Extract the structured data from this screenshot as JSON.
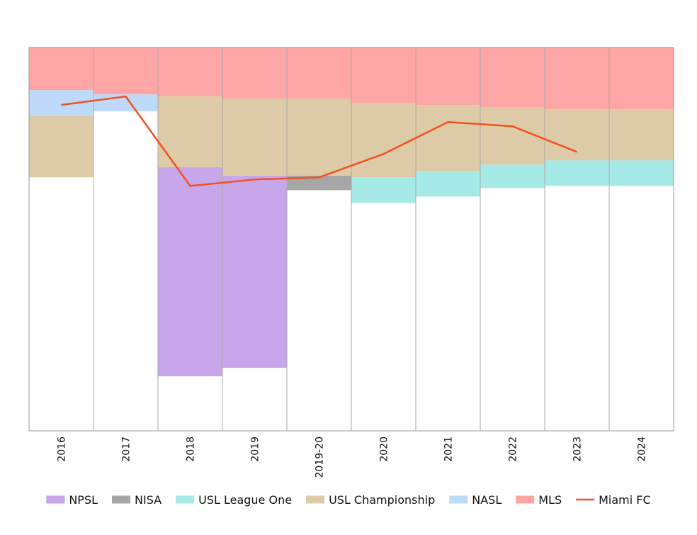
{
  "chart_data": {
    "type": "area",
    "title": "",
    "xlabel": "",
    "ylabel": "",
    "grid": true,
    "legend_position": "bottom",
    "categories": [
      "2016",
      "2017",
      "2018",
      "2019",
      "2019-20",
      "2020",
      "2021",
      "2022",
      "2023",
      "2024"
    ],
    "ylim": [
      0,
      90
    ],
    "y_inverted": true,
    "series": [
      {
        "name": "NPSL",
        "color": "#c8a6ea",
        "ranges": [
          null,
          null,
          [
            28.1,
            77.2
          ],
          [
            30.1,
            75.2
          ],
          null,
          null,
          null,
          null,
          null,
          null
        ]
      },
      {
        "name": "NISA",
        "color": "#a6a6a6",
        "ranges": [
          null,
          null,
          null,
          null,
          [
            30.1,
            33.5
          ],
          null,
          null,
          null,
          null,
          null
        ]
      },
      {
        "name": "USL League One",
        "color": "#a6eae8",
        "ranges": [
          null,
          null,
          null,
          null,
          null,
          [
            30.5,
            36.5
          ],
          [
            29.0,
            35.0
          ],
          [
            27.5,
            33.0
          ],
          [
            26.5,
            32.5
          ],
          [
            26.5,
            32.5
          ]
        ]
      },
      {
        "name": "USL Championship",
        "color": "#dccba6",
        "ranges": [
          [
            16.1,
            30.5
          ],
          null,
          [
            11.5,
            28.1
          ],
          [
            12.0,
            30.1
          ],
          [
            12.0,
            30.1
          ],
          [
            13.0,
            30.5
          ],
          [
            13.5,
            29.0
          ],
          [
            14.0,
            27.5
          ],
          [
            14.5,
            26.5
          ],
          [
            14.5,
            26.5
          ]
        ]
      },
      {
        "name": "NASL",
        "color": "#bedaf8",
        "ranges": [
          [
            10.0,
            16.1
          ],
          [
            11.0,
            15.0
          ],
          null,
          null,
          null,
          null,
          null,
          null,
          null,
          null
        ]
      },
      {
        "name": "MLS",
        "color": "#fea6a6",
        "ranges": [
          [
            0,
            10.0
          ],
          [
            0,
            11.0
          ],
          [
            0,
            11.5
          ],
          [
            0,
            12.0
          ],
          [
            0,
            12.0
          ],
          [
            0,
            13.0
          ],
          [
            0,
            13.5
          ],
          [
            0,
            14.0
          ],
          [
            0,
            14.5
          ],
          [
            0,
            14.5
          ]
        ]
      }
    ],
    "line": {
      "name": "Miami FC",
      "color": "#f25022",
      "values": [
        13.5,
        11.5,
        32.5,
        31.0,
        30.5,
        25.0,
        17.5,
        18.5,
        24.5,
        null
      ]
    }
  }
}
